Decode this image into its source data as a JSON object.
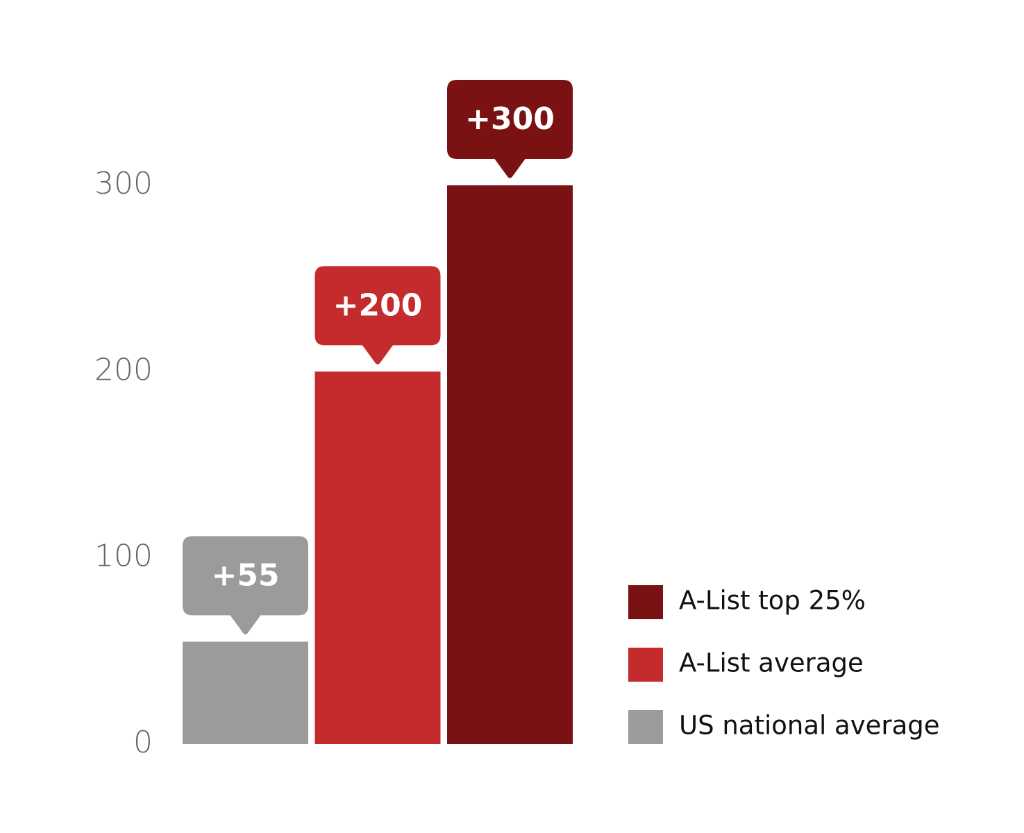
{
  "chart_data": {
    "type": "bar",
    "categories": [
      null
    ],
    "series": [
      {
        "name": "US national average",
        "color": "#9b9b9b",
        "values": [
          55
        ],
        "value_labels": [
          "+55"
        ]
      },
      {
        "name": "A-List average",
        "color": "#c42b2d",
        "values": [
          200
        ],
        "value_labels": [
          "+200"
        ]
      },
      {
        "name": "A-List top 25%",
        "color": "#7a1112",
        "values": [
          300
        ],
        "value_labels": [
          "+300"
        ]
      }
    ],
    "ylim": [
      0,
      300
    ],
    "yticks": [
      0,
      100,
      200,
      300
    ],
    "grid": false,
    "legend": "right"
  }
}
